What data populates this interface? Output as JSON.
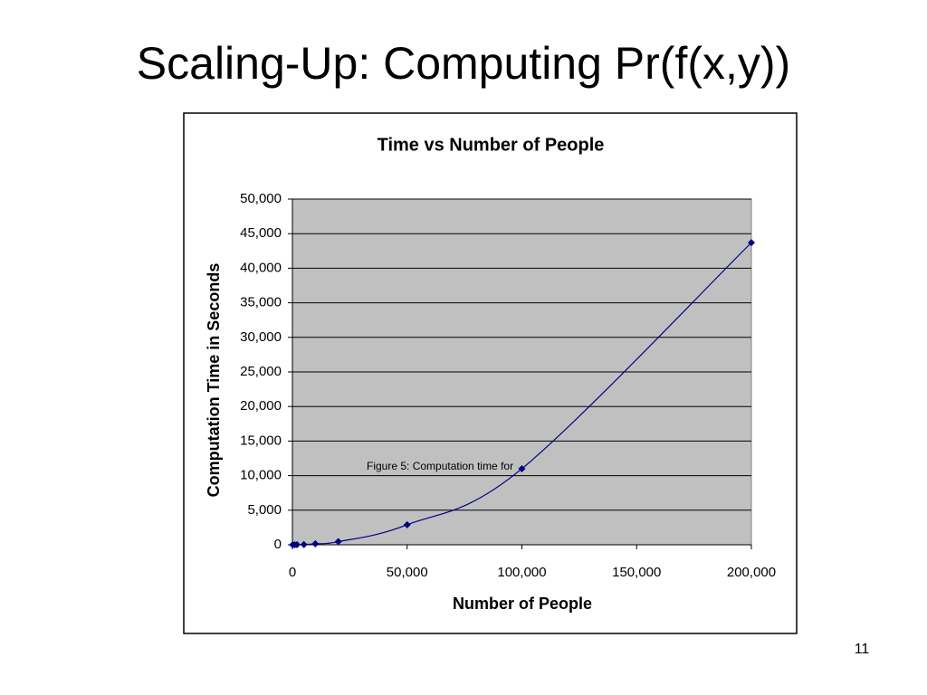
{
  "slide": {
    "title": "Scaling-Up: Computing Pr(f(x,y))",
    "page_number": "11"
  },
  "chart_data": {
    "type": "line",
    "title": "Time vs Number of People",
    "x_label": "Number of People",
    "y_label": "Computation Time in Seconds",
    "annotation": "Figure 5: Computation time for",
    "x": [
      100,
      1000,
      2000,
      5000,
      10000,
      20000,
      50000,
      100000,
      200000
    ],
    "series": [
      {
        "name": "Computation time",
        "color": "#000080",
        "values": [
          1,
          5,
          15,
          40,
          150,
          450,
          2900,
          11000,
          43700
        ]
      }
    ],
    "smooth": true,
    "marker": "diamond",
    "grid": true,
    "plot_background": "#c0c0c0",
    "xlim": [
      0,
      200000
    ],
    "xticks": [
      0,
      {
        "value": 50000,
        "label": "50,000"
      },
      {
        "value": 100000,
        "label": "100,000"
      },
      {
        "value": 150000,
        "label": "150,000"
      },
      {
        "value": 200000,
        "label": "200,000"
      }
    ],
    "ylim": [
      0,
      50000
    ],
    "yticks": [
      0,
      {
        "value": 5000,
        "label": "5,000"
      },
      {
        "value": 10000,
        "label": "10,000"
      },
      {
        "value": 15000,
        "label": "15,000"
      },
      {
        "value": 20000,
        "label": "20,000"
      },
      {
        "value": 25000,
        "label": "25,000"
      },
      {
        "value": 30000,
        "label": "30,000"
      },
      {
        "value": 35000,
        "label": "35,000"
      },
      {
        "value": 40000,
        "label": "40,000"
      },
      {
        "value": 45000,
        "label": "45,000"
      },
      {
        "value": 50000,
        "label": "50,000"
      }
    ]
  }
}
